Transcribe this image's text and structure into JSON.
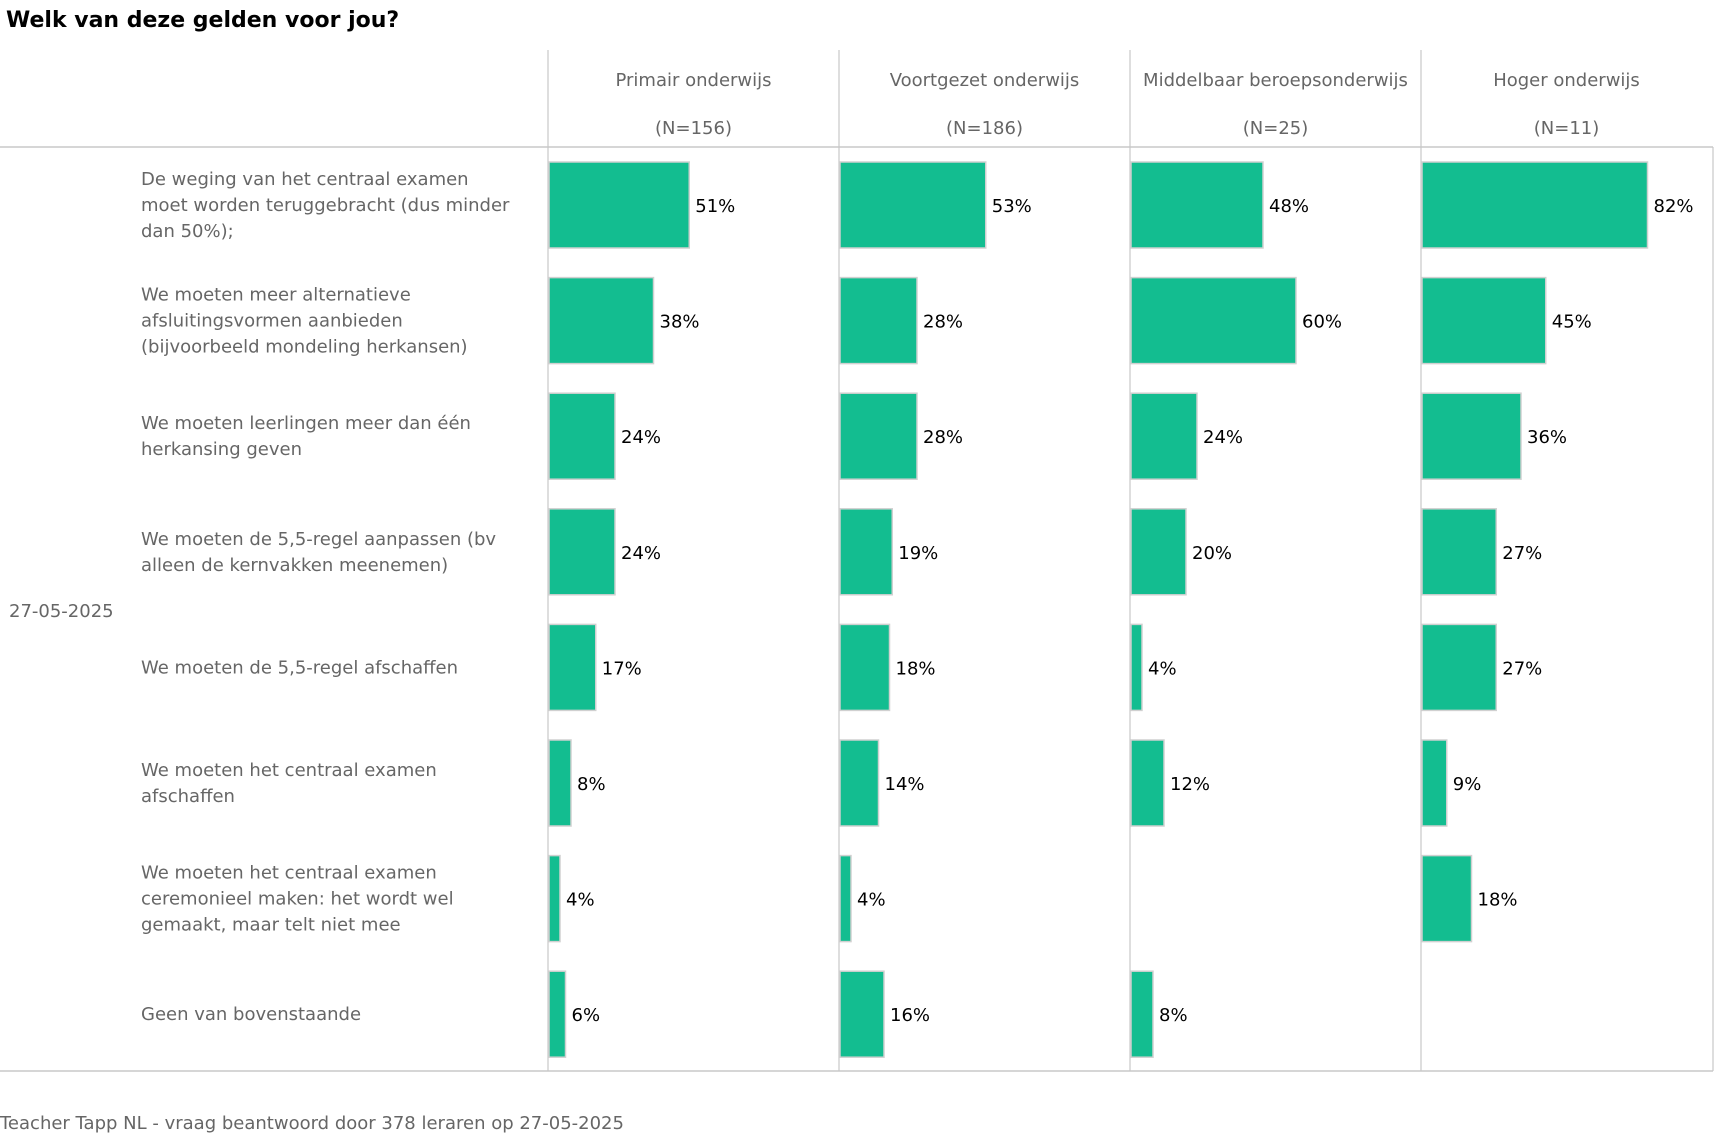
{
  "title": "Welk van deze gelden voor jou?",
  "footer": "Teacher Tapp NL - vraag beantwoord door 378 leraren op 27-05-2025",
  "colors": {
    "bar": "#13BD90",
    "bar_border": "#D0D0D0",
    "grid": "#C8C8C8",
    "label": "#666666",
    "value": "#000000"
  },
  "chart_data": {
    "type": "bar",
    "orientation": "horizontal",
    "facet_label": "27-05-2025",
    "panels": [
      {
        "name": "Primair onderwijs",
        "n": "(N=156)"
      },
      {
        "name": "Voortgezet onderwijs",
        "n": "(N=186)"
      },
      {
        "name": "Middelbaar beroepsonderwijs",
        "n": "(N=25)"
      },
      {
        "name": "Hoger onderwijs",
        "n": "(N=11)"
      }
    ],
    "categories": [
      [
        "De weging van het centraal examen",
        "moet worden teruggebracht (dus minder",
        "dan 50%);"
      ],
      [
        "We moeten meer alternatieve",
        "afsluitingsvormen aanbieden",
        "(bijvoorbeeld mondeling herkansen)"
      ],
      [
        "We moeten leerlingen meer dan één",
        "herkansing geven"
      ],
      [
        "We moeten de 5,5-regel aanpassen (bv",
        "alleen de kernvakken meenemen)"
      ],
      [
        "We moeten de 5,5-regel afschaffen"
      ],
      [
        "We moeten het centraal examen",
        "afschaffen"
      ],
      [
        "We moeten het centraal examen",
        "ceremonieel maken: het wordt wel",
        "gemaakt, maar telt niet mee"
      ],
      [
        "Geen van bovenstaande"
      ]
    ],
    "values": [
      [
        51,
        53,
        48,
        82
      ],
      [
        38,
        28,
        60,
        45
      ],
      [
        24,
        28,
        24,
        36
      ],
      [
        24,
        19,
        20,
        27
      ],
      [
        17,
        18,
        4,
        27
      ],
      [
        8,
        14,
        12,
        9
      ],
      [
        4,
        4,
        null,
        18
      ],
      [
        6,
        16,
        8,
        null
      ]
    ],
    "value_suffix": "%",
    "xlim": [
      0,
      100
    ]
  }
}
